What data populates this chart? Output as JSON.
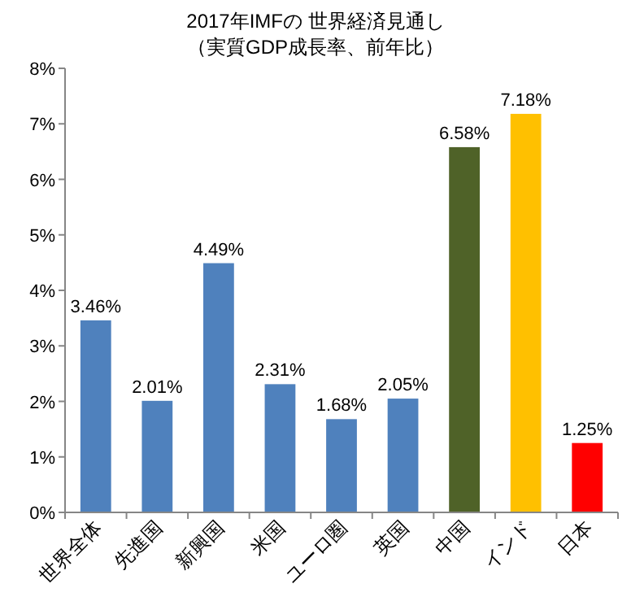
{
  "chart_data": {
    "type": "bar",
    "title": "2017年IMFの 世界経済見通し",
    "subtitle": "（実質GDP成長率、前年比）",
    "categories": [
      "世界全体",
      "先進国",
      "新興国",
      "米国",
      "ユーロ圏",
      "英国",
      "中国",
      "インド",
      "日本"
    ],
    "values": [
      3.46,
      2.01,
      4.49,
      2.31,
      1.68,
      2.05,
      6.58,
      7.18,
      1.25
    ],
    "colors": [
      "#4f81bd",
      "#4f81bd",
      "#4f81bd",
      "#4f81bd",
      "#4f81bd",
      "#4f81bd",
      "#4f6228",
      "#ffc000",
      "#ff0000"
    ],
    "value_labels": [
      "3.46%",
      "2.01%",
      "4.49%",
      "2.31%",
      "1.68%",
      "2.05%",
      "6.58%",
      "7.18%",
      "1.25%"
    ],
    "ylim": [
      0,
      8
    ],
    "yticks": [
      {
        "value": 0,
        "label": "0%"
      },
      {
        "value": 1,
        "label": "1%"
      },
      {
        "value": 2,
        "label": "2%"
      },
      {
        "value": 3,
        "label": "3%"
      },
      {
        "value": 4,
        "label": "4%"
      },
      {
        "value": 5,
        "label": "5%"
      },
      {
        "value": 6,
        "label": "6%"
      },
      {
        "value": 7,
        "label": "7%"
      },
      {
        "value": 8,
        "label": "8%"
      }
    ],
    "grid": false
  }
}
